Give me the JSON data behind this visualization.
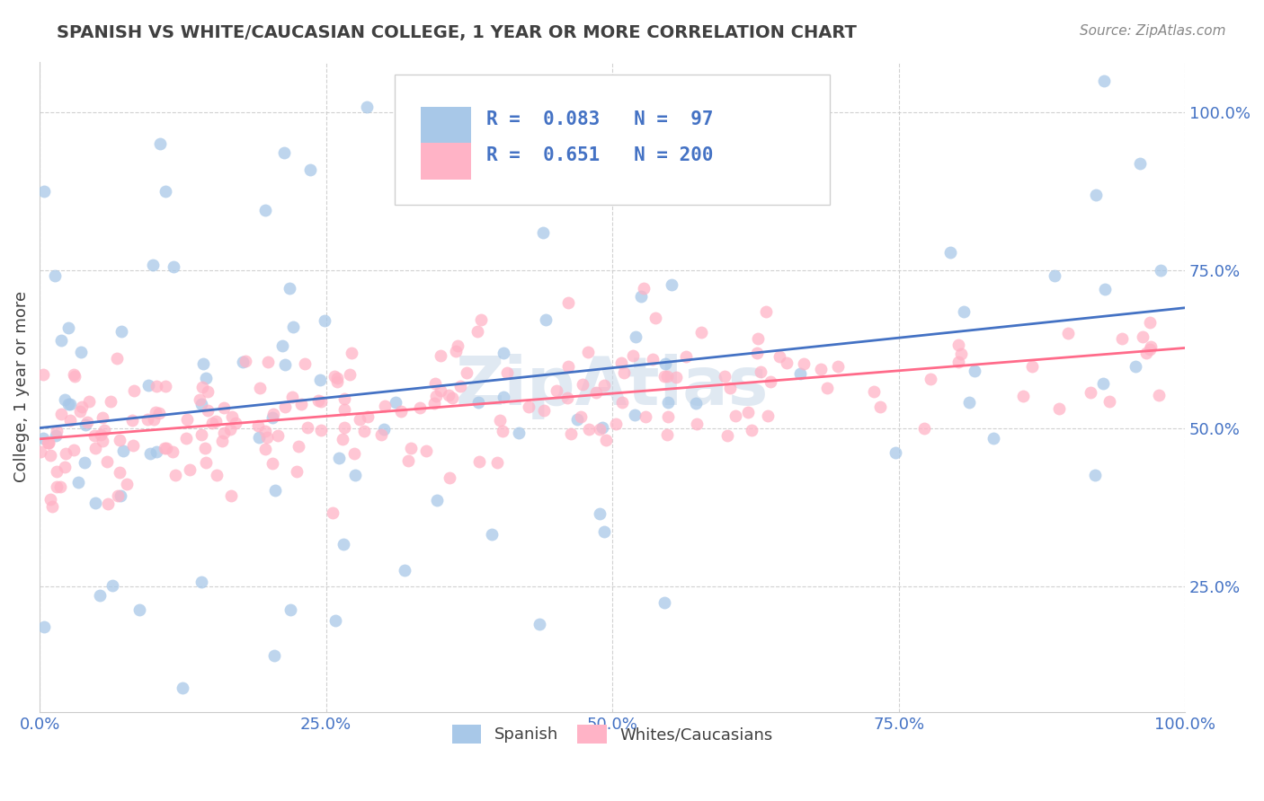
{
  "title": "SPANISH VS WHITE/CAUCASIAN COLLEGE, 1 YEAR OR MORE CORRELATION CHART",
  "source": "Source: ZipAtlas.com",
  "ylabel": "College, 1 year or more",
  "xlim": [
    0,
    1
  ],
  "ylim": [
    0.05,
    1.08
  ],
  "xticks": [
    0.0,
    0.25,
    0.5,
    0.75,
    1.0
  ],
  "yticks": [
    0.25,
    0.5,
    0.75,
    1.0
  ],
  "xtick_labels": [
    "0.0%",
    "25.0%",
    "50.0%",
    "75.0%",
    "100.0%"
  ],
  "ytick_labels": [
    "25.0%",
    "50.0%",
    "75.0%",
    "100.0%"
  ],
  "blue_color": "#A8C8E8",
  "pink_color": "#FFB3C6",
  "blue_line_color": "#4472C4",
  "pink_line_color": "#FF6B8A",
  "series1_label": "Spanish",
  "series2_label": "Whites/Caucasians",
  "watermark": "ZipAtlas",
  "R1": 0.083,
  "N1": 97,
  "R2": 0.651,
  "N2": 200,
  "title_color": "#404040",
  "source_color": "#888888",
  "grid_color": "#cccccc",
  "tick_color": "#4472C4",
  "watermark_color": "#C8D8E8",
  "background_color": "#ffffff",
  "legend_text_color": "#4472C4"
}
